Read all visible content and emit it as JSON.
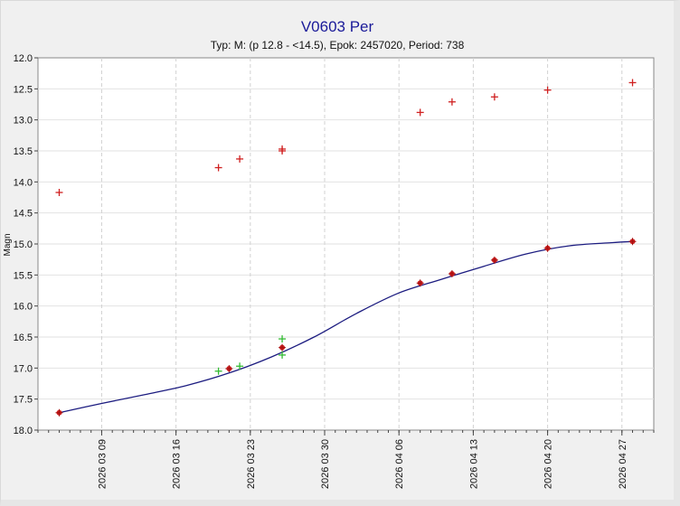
{
  "chart_data": {
    "type": "scatter",
    "title": "V0603 Per",
    "subtitle": "Typ: M: (p 12.8 - <14.5), Epok: 2457020, Period: 738",
    "xlabel": "",
    "ylabel": "Magn",
    "y_inverted": true,
    "ylim": [
      12.0,
      18.0
    ],
    "yticks": [
      "12.0",
      "12.5",
      "13.0",
      "13.5",
      "14.0",
      "14.5",
      "15.0",
      "15.5",
      "16.0",
      "16.5",
      "17.0",
      "17.5",
      "18.0"
    ],
    "xlim": [
      "2026-03-03",
      "2026-04-30"
    ],
    "xticks": [
      "2026 03 09",
      "2026 03 16",
      "2026 03 23",
      "2026 03 30",
      "2026 04 06",
      "2026 04 13",
      "2026 04 20",
      "2026 04 27"
    ],
    "grid": true,
    "colors": {
      "upper_limit": "#d02020",
      "observed": "#d02020",
      "green_points": "#33bb33",
      "curve": "#1c1c80",
      "title": "#1a1a99"
    },
    "series": [
      {
        "kind": "red-plus",
        "points": [
          {
            "x": "2026-03-05",
            "y": 14.17
          },
          {
            "x": "2026-03-20",
            "y": 13.77
          },
          {
            "x": "2026-03-22",
            "y": 13.63
          },
          {
            "x": "2026-03-26",
            "y": 13.47
          },
          {
            "x": "2026-03-26",
            "y": 13.5
          },
          {
            "x": "2026-04-08",
            "y": 12.88
          },
          {
            "x": "2026-04-11",
            "y": 12.71
          },
          {
            "x": "2026-04-15",
            "y": 12.63
          },
          {
            "x": "2026-04-20",
            "y": 12.52
          },
          {
            "x": "2026-04-28",
            "y": 12.4
          }
        ]
      },
      {
        "kind": "red-dot",
        "points": [
          {
            "x": "2026-03-05",
            "y": 17.72
          },
          {
            "x": "2026-03-21",
            "y": 17.01
          },
          {
            "x": "2026-03-26",
            "y": 16.67
          },
          {
            "x": "2026-04-08",
            "y": 15.63
          },
          {
            "x": "2026-04-11",
            "y": 15.48
          },
          {
            "x": "2026-04-15",
            "y": 15.26
          },
          {
            "x": "2026-04-20",
            "y": 15.07
          },
          {
            "x": "2026-04-28",
            "y": 14.96
          }
        ]
      },
      {
        "kind": "green-plus",
        "points": [
          {
            "x": "2026-03-20",
            "y": 17.05
          },
          {
            "x": "2026-03-22",
            "y": 16.97
          },
          {
            "x": "2026-03-26",
            "y": 16.53
          },
          {
            "x": "2026-03-26",
            "y": 16.79
          }
        ]
      }
    ],
    "curve": {
      "x": [
        "2026-03-05",
        "2026-03-09",
        "2026-03-13",
        "2026-03-17",
        "2026-03-21",
        "2026-03-25",
        "2026-03-29",
        "2026-04-02",
        "2026-04-06",
        "2026-04-10",
        "2026-04-14",
        "2026-04-18",
        "2026-04-22",
        "2026-04-26",
        "2026-04-28"
      ],
      "y": [
        17.72,
        17.57,
        17.43,
        17.28,
        17.08,
        16.82,
        16.5,
        16.12,
        15.79,
        15.57,
        15.36,
        15.16,
        15.03,
        14.98,
        14.96
      ]
    }
  }
}
